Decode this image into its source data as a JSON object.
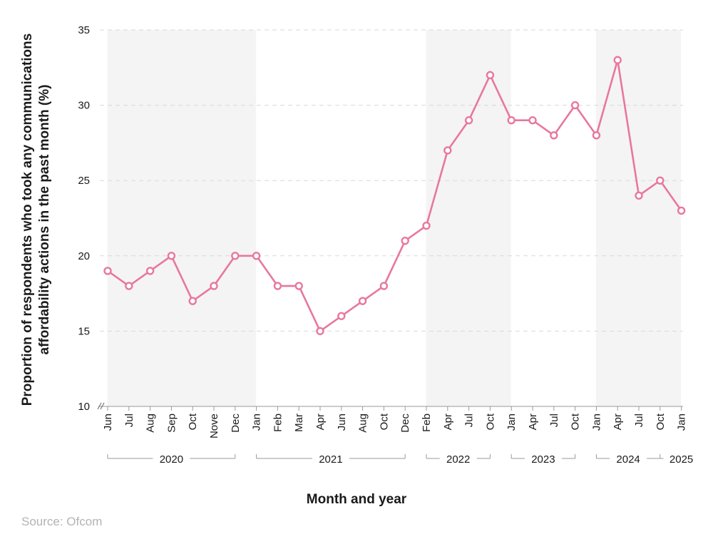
{
  "chart_data": {
    "type": "line",
    "ylabel": "Proportion of respondents who took any communications affordability actions in the past month (%)",
    "xlabel": "Month and year",
    "ylim": [
      10,
      35
    ],
    "yticks": [
      10,
      15,
      20,
      25,
      30,
      35
    ],
    "grid": "horizontal dashed",
    "categories": [
      "Jun",
      "Jul",
      "Aug",
      "Sep",
      "Oct",
      "Nove",
      "Dec",
      "Jan",
      "Feb",
      "Mar",
      "Apr",
      "Jun",
      "Aug",
      "Oct",
      "Dec",
      "Feb",
      "Apr",
      "Jul",
      "Oct",
      "Jan",
      "Apr",
      "Jul",
      "Oct",
      "Jan",
      "Apr",
      "Jul",
      "Oct",
      "Jan"
    ],
    "series": [
      {
        "values": [
          19,
          18,
          19,
          20,
          17,
          18,
          20,
          20,
          18,
          18,
          15,
          16,
          17,
          18,
          21,
          22,
          27,
          29,
          32,
          29,
          29,
          28,
          30,
          28,
          33,
          24,
          25,
          23
        ]
      }
    ],
    "year_groups": [
      {
        "label": "2020",
        "start": 0,
        "end": 6,
        "shaded": true
      },
      {
        "label": "2021",
        "start": 7,
        "end": 14,
        "shaded": false
      },
      {
        "label": "2022",
        "start": 15,
        "end": 18,
        "shaded": true
      },
      {
        "label": "2023",
        "start": 19,
        "end": 22,
        "shaded": false
      },
      {
        "label": "2024",
        "start": 23,
        "end": 26,
        "shaded": true
      },
      {
        "label": "2025",
        "start": 27,
        "end": 27,
        "shaded": false
      }
    ],
    "line_color": "#e8779f",
    "shade_color": "#f4f4f4"
  },
  "source": "Source: Ofcom"
}
